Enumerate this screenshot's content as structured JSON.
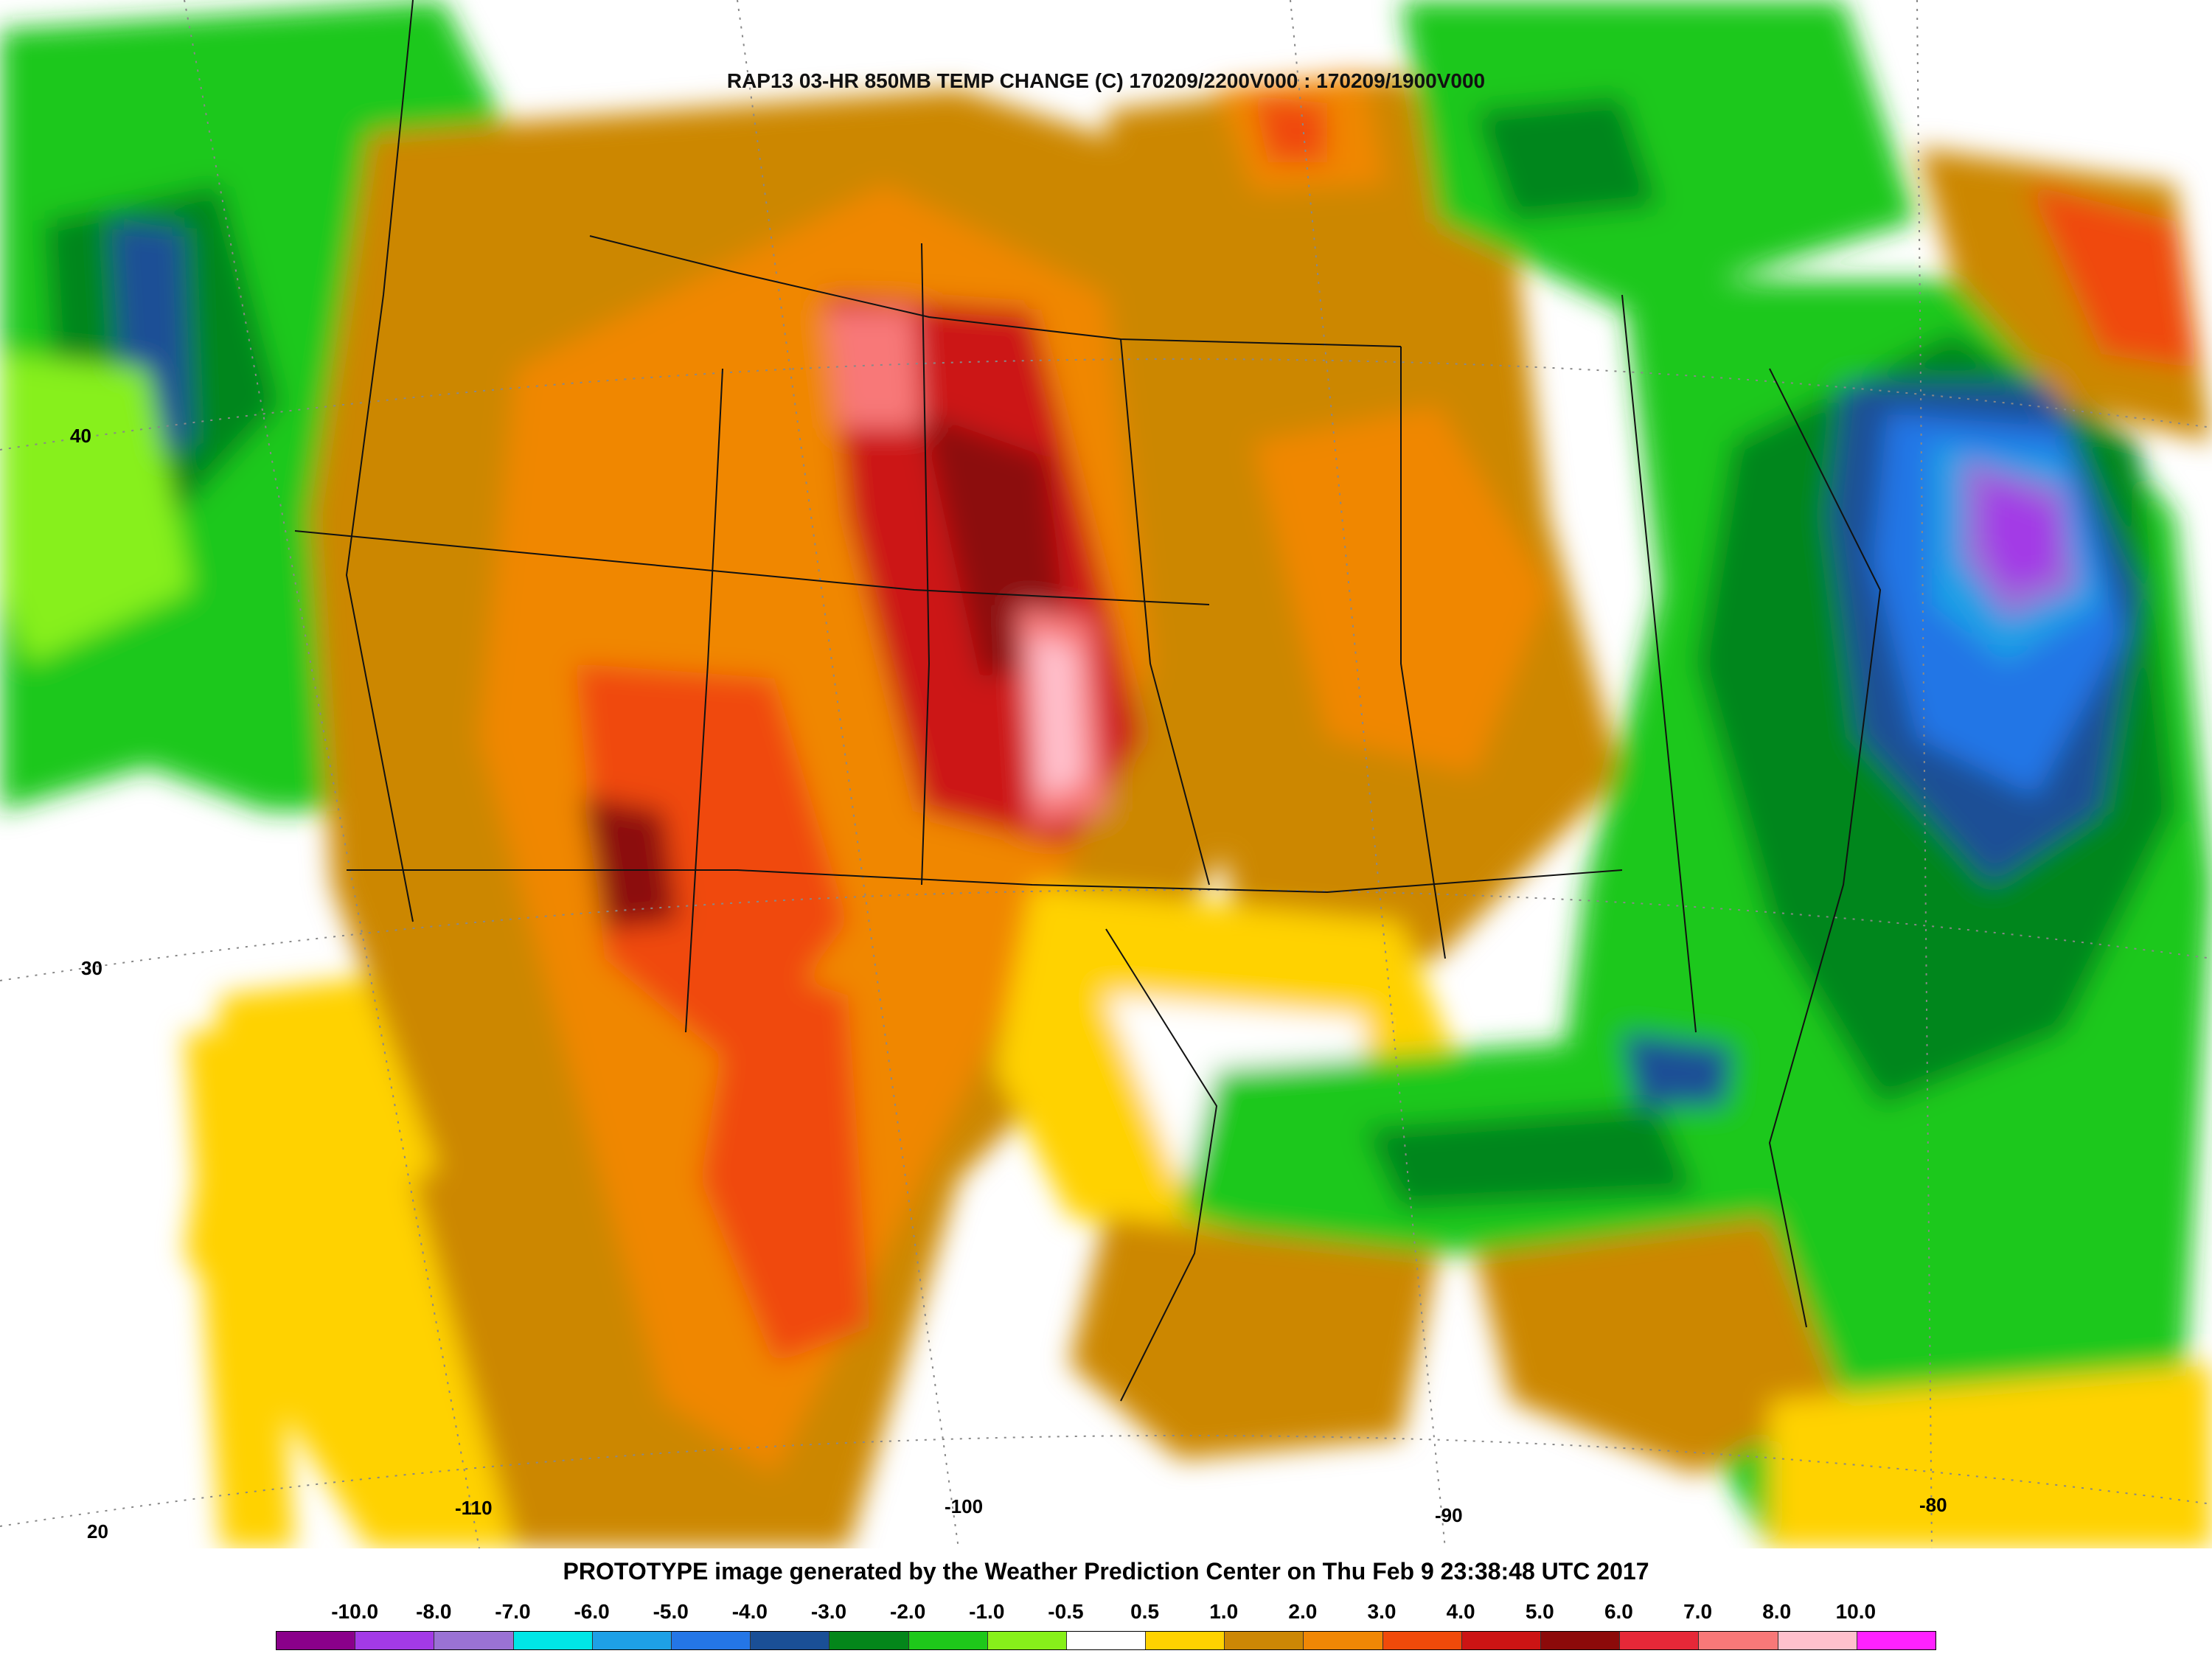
{
  "map": {
    "title": "RAP13 03-HR 850MB TEMP CHANGE (C) 170209/2200V000 : 170209/1900V000",
    "latitude_labels": [
      "40",
      "30",
      "20"
    ],
    "longitude_labels": [
      "-110",
      "-100",
      "-90",
      "-80"
    ]
  },
  "footer": {
    "credit": "PROTOTYPE image generated by the Weather Prediction Center on Thu Feb 9 23:38:48 UTC 2017"
  },
  "legend": {
    "tick_labels": [
      "-10.0",
      "-8.0",
      "-7.0",
      "-6.0",
      "-5.0",
      "-4.0",
      "-3.0",
      "-2.0",
      "-1.0",
      "-0.5",
      "0.5",
      "1.0",
      "2.0",
      "3.0",
      "4.0",
      "5.0",
      "6.0",
      "7.0",
      "8.0",
      "10.0"
    ],
    "colors": [
      "#8a008a",
      "#a33ae6",
      "#9a72d4",
      "#00e6e6",
      "#1ea0e6",
      "#2476e6",
      "#1a4f96",
      "#04861a",
      "#1ec81a",
      "#87f01a",
      "#ffffff",
      "#ffd200",
      "#cc8705",
      "#f08705",
      "#f04a0a",
      "#cc1414",
      "#8c0a0a",
      "#e62838",
      "#f87878",
      "#ffc0cc",
      "#ff22ff"
    ],
    "colors_role": "color scale from negative (cooling) to positive (warming) 850mb temperature change"
  }
}
